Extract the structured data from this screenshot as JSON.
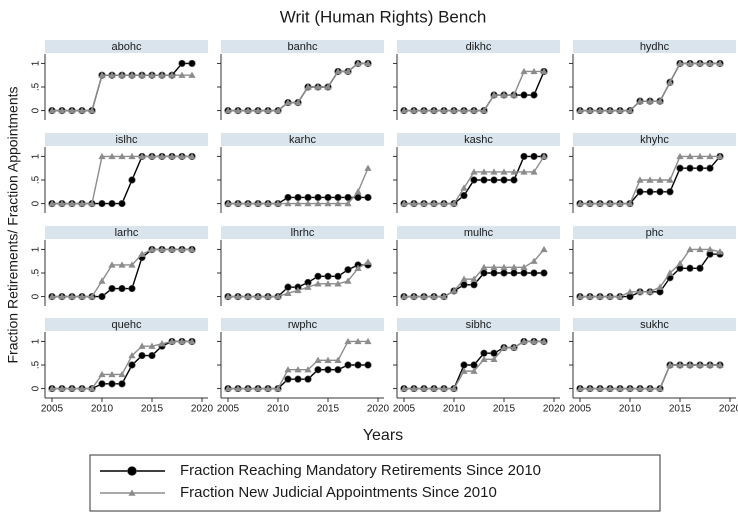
{
  "chart_data": {
    "type": "line",
    "title": "Writ (Human Rights) Bench",
    "x_label": "Years",
    "y_label": "Fraction Retirements/ Fraction Appointments",
    "x": [
      2005,
      2006,
      2007,
      2008,
      2009,
      2010,
      2011,
      2012,
      2013,
      2014,
      2015,
      2016,
      2017,
      2018,
      2019
    ],
    "xlim": [
      2004.3,
      2020.6
    ],
    "xticks": [
      2005,
      2010,
      2015,
      2020
    ],
    "ylim": [
      -0.2,
      1.2
    ],
    "yticks": [
      0,
      {
        "value": 0.5,
        "label": ".5"
      },
      1
    ],
    "series": [
      {
        "name": "Fraction Reaching Mandatory Retirements Since 2010",
        "color": "#000000",
        "marker": "circle"
      },
      {
        "name": "Fraction New Judicial Appointments Since 2010",
        "color": "#8c8c8c",
        "marker": "triangle"
      }
    ],
    "panels": [
      {
        "title": "abohc",
        "values": [
          [
            0,
            0,
            0,
            0,
            0,
            0.75,
            0.75,
            0.75,
            0.75,
            0.75,
            0.75,
            0.75,
            0.75,
            1,
            1
          ],
          [
            0,
            0,
            0,
            0,
            0,
            0.75,
            0.75,
            0.75,
            0.75,
            0.75,
            0.75,
            0.75,
            0.75,
            0.75,
            0.75
          ]
        ]
      },
      {
        "title": "banhc",
        "values": [
          [
            0,
            0,
            0,
            0,
            0,
            0,
            0.17,
            0.17,
            0.5,
            0.5,
            0.5,
            0.83,
            0.83,
            1,
            1
          ],
          [
            0,
            0,
            0,
            0,
            0,
            0,
            0.17,
            0.17,
            0.5,
            0.5,
            0.5,
            0.83,
            0.83,
            1,
            1
          ]
        ]
      },
      {
        "title": "dikhc",
        "values": [
          [
            0,
            0,
            0,
            0,
            0,
            0,
            0,
            0,
            0,
            0.33,
            0.33,
            0.33,
            0.33,
            0.33,
            0.83
          ],
          [
            0,
            0,
            0,
            0,
            0,
            0,
            0,
            0,
            0,
            0.33,
            0.33,
            0.33,
            0.83,
            0.83,
            0.83
          ]
        ]
      },
      {
        "title": "hydhc",
        "values": [
          [
            0,
            0,
            0,
            0,
            0,
            0,
            0.2,
            0.2,
            0.2,
            0.6,
            1,
            1,
            1,
            1,
            1
          ],
          [
            0,
            0,
            0,
            0,
            0,
            0,
            0.2,
            0.2,
            0.2,
            0.6,
            1,
            1,
            1,
            1,
            1
          ]
        ]
      },
      {
        "title": "islhc",
        "values": [
          [
            0,
            0,
            0,
            0,
            0,
            0,
            0,
            0,
            0.5,
            1,
            1,
            1,
            1,
            1,
            1
          ],
          [
            0,
            0,
            0,
            0,
            0,
            1,
            1,
            1,
            1,
            1,
            1,
            1,
            1,
            1,
            1
          ]
        ]
      },
      {
        "title": "karhc",
        "values": [
          [
            0,
            0,
            0,
            0,
            0,
            0,
            0.13,
            0.13,
            0.13,
            0.13,
            0.13,
            0.13,
            0.13,
            0.13,
            0.13
          ],
          [
            0,
            0,
            0,
            0,
            0,
            0,
            0,
            0,
            0,
            0,
            0,
            0,
            0,
            0.25,
            0.75
          ]
        ]
      },
      {
        "title": "kashc",
        "values": [
          [
            0,
            0,
            0,
            0,
            0,
            0,
            0.17,
            0.5,
            0.5,
            0.5,
            0.5,
            0.5,
            1,
            1,
            1
          ],
          [
            0,
            0,
            0,
            0,
            0,
            0,
            0.33,
            0.67,
            0.67,
            0.67,
            0.67,
            0.67,
            0.67,
            0.67,
            1
          ]
        ]
      },
      {
        "title": "khyhc",
        "values": [
          [
            0,
            0,
            0,
            0,
            0,
            0,
            0.25,
            0.25,
            0.25,
            0.25,
            0.75,
            0.75,
            0.75,
            0.75,
            1
          ],
          [
            0,
            0,
            0,
            0,
            0,
            0,
            0.5,
            0.5,
            0.5,
            0.5,
            1,
            1,
            1,
            1,
            1
          ]
        ]
      },
      {
        "title": "larhc",
        "values": [
          [
            0,
            0,
            0,
            0,
            0,
            0,
            0.17,
            0.17,
            0.17,
            0.83,
            1,
            1,
            1,
            1,
            1
          ],
          [
            0,
            0,
            0,
            0,
            0,
            0.33,
            0.67,
            0.67,
            0.67,
            0.9,
            1,
            1,
            1,
            1,
            1
          ]
        ]
      },
      {
        "title": "lhrhc",
        "values": [
          [
            0,
            0,
            0,
            0,
            0,
            0,
            0.2,
            0.2,
            0.3,
            0.43,
            0.43,
            0.43,
            0.57,
            0.67,
            0.67
          ],
          [
            0,
            0,
            0,
            0,
            0,
            0,
            0.07,
            0.13,
            0.2,
            0.27,
            0.27,
            0.27,
            0.33,
            0.6,
            0.73
          ]
        ]
      },
      {
        "title": "mulhc",
        "values": [
          [
            0,
            0,
            0,
            0,
            0,
            0.12,
            0.25,
            0.25,
            0.5,
            0.5,
            0.5,
            0.5,
            0.5,
            0.5,
            0.5
          ],
          [
            0,
            0,
            0,
            0,
            0,
            0.12,
            0.37,
            0.37,
            0.62,
            0.62,
            0.62,
            0.62,
            0.62,
            0.75,
            1
          ]
        ]
      },
      {
        "title": "phc",
        "values": [
          [
            0,
            0,
            0,
            0,
            0,
            0,
            0.1,
            0.1,
            0.1,
            0.4,
            0.6,
            0.6,
            0.6,
            0.9,
            0.9
          ],
          [
            0,
            0,
            0,
            0,
            0,
            0.1,
            0.1,
            0.1,
            0.2,
            0.5,
            0.7,
            1,
            1,
            1,
            0.95
          ]
        ]
      },
      {
        "title": "quehc",
        "values": [
          [
            0,
            0,
            0,
            0,
            0,
            0.1,
            0.1,
            0.1,
            0.5,
            0.7,
            0.7,
            0.9,
            1,
            1,
            1
          ],
          [
            0,
            0,
            0,
            0,
            0,
            0.3,
            0.3,
            0.3,
            0.7,
            0.9,
            0.9,
            0.95,
            1,
            1,
            1
          ]
        ]
      },
      {
        "title": "rwphc",
        "values": [
          [
            0,
            0,
            0,
            0,
            0,
            0,
            0.2,
            0.2,
            0.2,
            0.4,
            0.4,
            0.4,
            0.5,
            0.5,
            0.5
          ],
          [
            0,
            0,
            0,
            0,
            0,
            0,
            0.4,
            0.4,
            0.4,
            0.6,
            0.6,
            0.6,
            1,
            1,
            1
          ]
        ]
      },
      {
        "title": "sibhc",
        "values": [
          [
            0,
            0,
            0,
            0,
            0,
            0,
            0.5,
            0.5,
            0.75,
            0.75,
            0.87,
            0.87,
            1,
            1,
            1
          ],
          [
            0,
            0,
            0,
            0,
            0,
            0,
            0.37,
            0.37,
            0.62,
            0.62,
            0.87,
            0.87,
            1,
            1,
            1
          ]
        ]
      },
      {
        "title": "sukhc",
        "values": [
          [
            0,
            0,
            0,
            0,
            0,
            0,
            0,
            0,
            0,
            0.5,
            0.5,
            0.5,
            0.5,
            0.5,
            0.5
          ],
          [
            0,
            0,
            0,
            0,
            0,
            0,
            0,
            0,
            0,
            0.5,
            0.5,
            0.5,
            0.5,
            0.5,
            0.5
          ]
        ]
      }
    ]
  }
}
